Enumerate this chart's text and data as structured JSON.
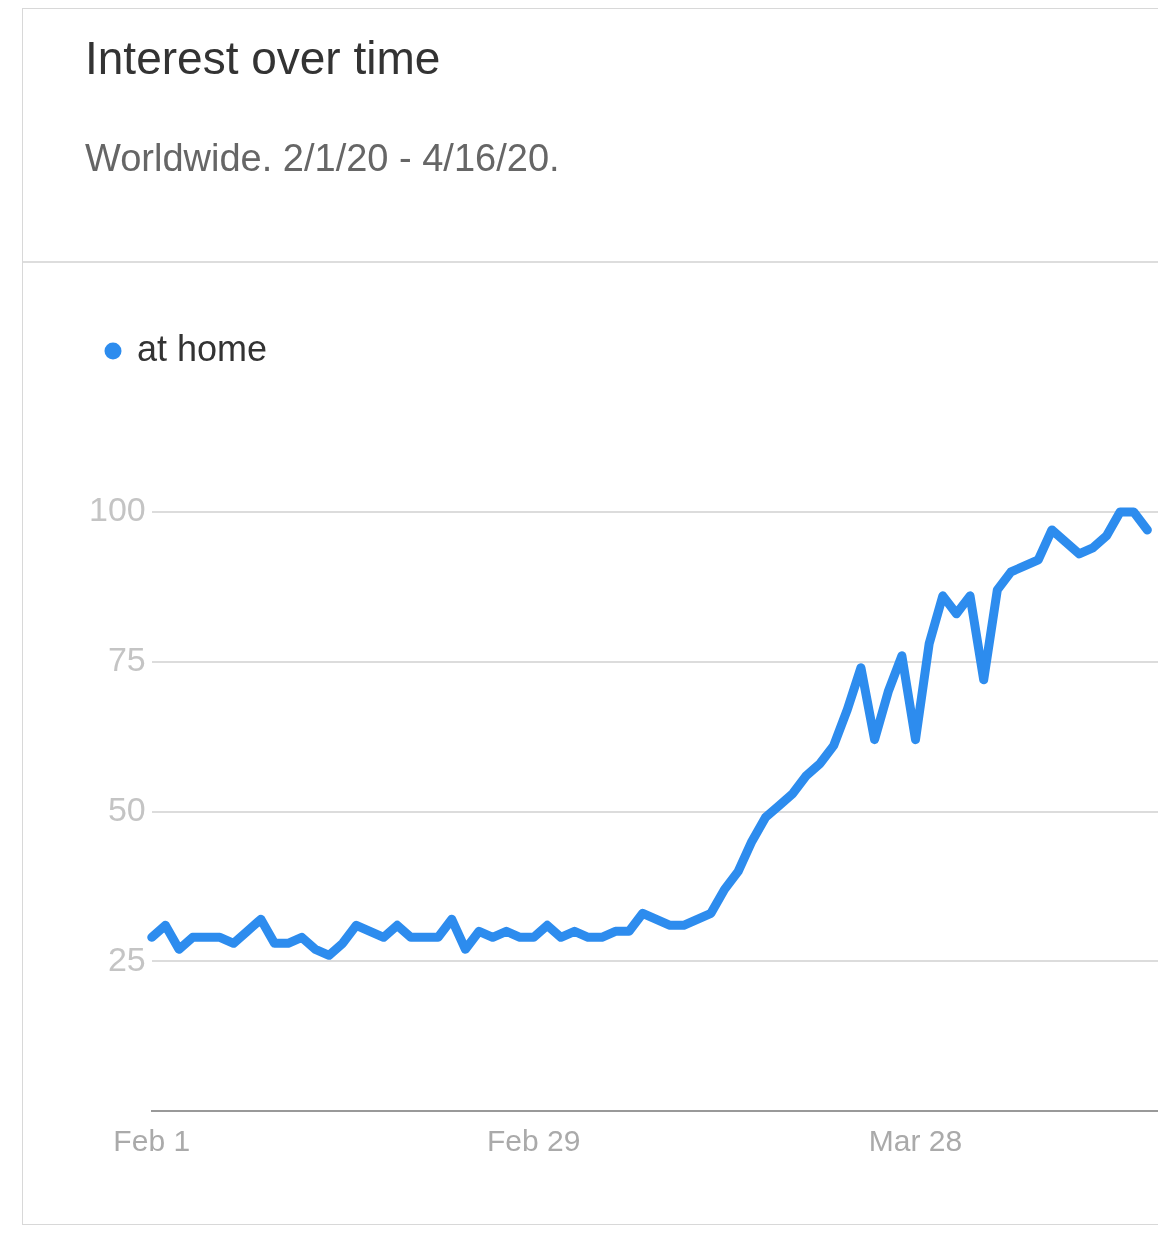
{
  "chart_data": {
    "type": "line",
    "title": "Interest over time",
    "subtitle": "Worldwide. 2/1/20 - 4/16/20.",
    "x": [
      "--02-01",
      "--02-02",
      "--02-03",
      "--02-04",
      "--02-05",
      "--02-06",
      "--02-07",
      "--02-08",
      "--02-09",
      "--02-10",
      "--02-11",
      "--02-12",
      "--02-13",
      "--02-14",
      "--02-15",
      "--02-16",
      "--02-17",
      "--02-18",
      "--02-19",
      "--02-20",
      "--02-21",
      "--02-22",
      "--02-23",
      "--02-24",
      "--02-25",
      "--02-26",
      "--02-27",
      "--02-28",
      "--02-29",
      "--03-01",
      "--03-02",
      "--03-03",
      "--03-04",
      "--03-05",
      "--03-06",
      "--03-07",
      "--03-08",
      "--03-09",
      "--03-10",
      "--03-11",
      "--03-12",
      "--03-13",
      "--03-14",
      "--03-15",
      "--03-16",
      "--03-17",
      "--03-18",
      "--03-19",
      "--03-20",
      "--03-21",
      "--03-22",
      "--03-23",
      "--03-24",
      "--03-25",
      "--03-26",
      "--03-27",
      "--03-28",
      "--03-29",
      "--03-30",
      "--03-31",
      "--04-01",
      "--04-02",
      "--04-03",
      "--04-04",
      "--04-05",
      "--04-06",
      "--04-07",
      "--04-08",
      "--04-09",
      "--04-10",
      "--04-11",
      "--04-12",
      "--04-13",
      "--04-14"
    ],
    "series": [
      {
        "name": "at home",
        "color": "#2d8cee",
        "values": [
          29,
          31,
          27,
          29,
          29,
          29,
          28,
          30,
          32,
          28,
          28,
          29,
          27,
          26,
          28,
          31,
          30,
          29,
          31,
          29,
          29,
          29,
          32,
          27,
          30,
          29,
          30,
          29,
          29,
          31,
          29,
          30,
          29,
          29,
          30,
          30,
          33,
          32,
          31,
          31,
          32,
          33,
          37,
          40,
          45,
          49,
          51,
          53,
          56,
          58,
          61,
          67,
          74,
          62,
          70,
          76,
          62,
          78,
          86,
          83,
          86,
          72,
          87,
          90,
          91,
          92,
          97,
          95,
          93,
          94,
          96,
          100,
          100,
          97
        ]
      }
    ],
    "xlim": [
      "--02-01",
      "--04-15"
    ],
    "xticks": [
      {
        "value": "--02-01",
        "label": "Feb 1"
      },
      {
        "value": "--02-29",
        "label": "Feb 29"
      },
      {
        "value": "--03-28",
        "label": "Mar 28"
      }
    ],
    "ylim": [
      0,
      100
    ],
    "yticks": [
      25,
      50,
      75,
      100
    ],
    "grid": "y",
    "legend": "top left",
    "marker": "none",
    "line_style": "solid"
  }
}
